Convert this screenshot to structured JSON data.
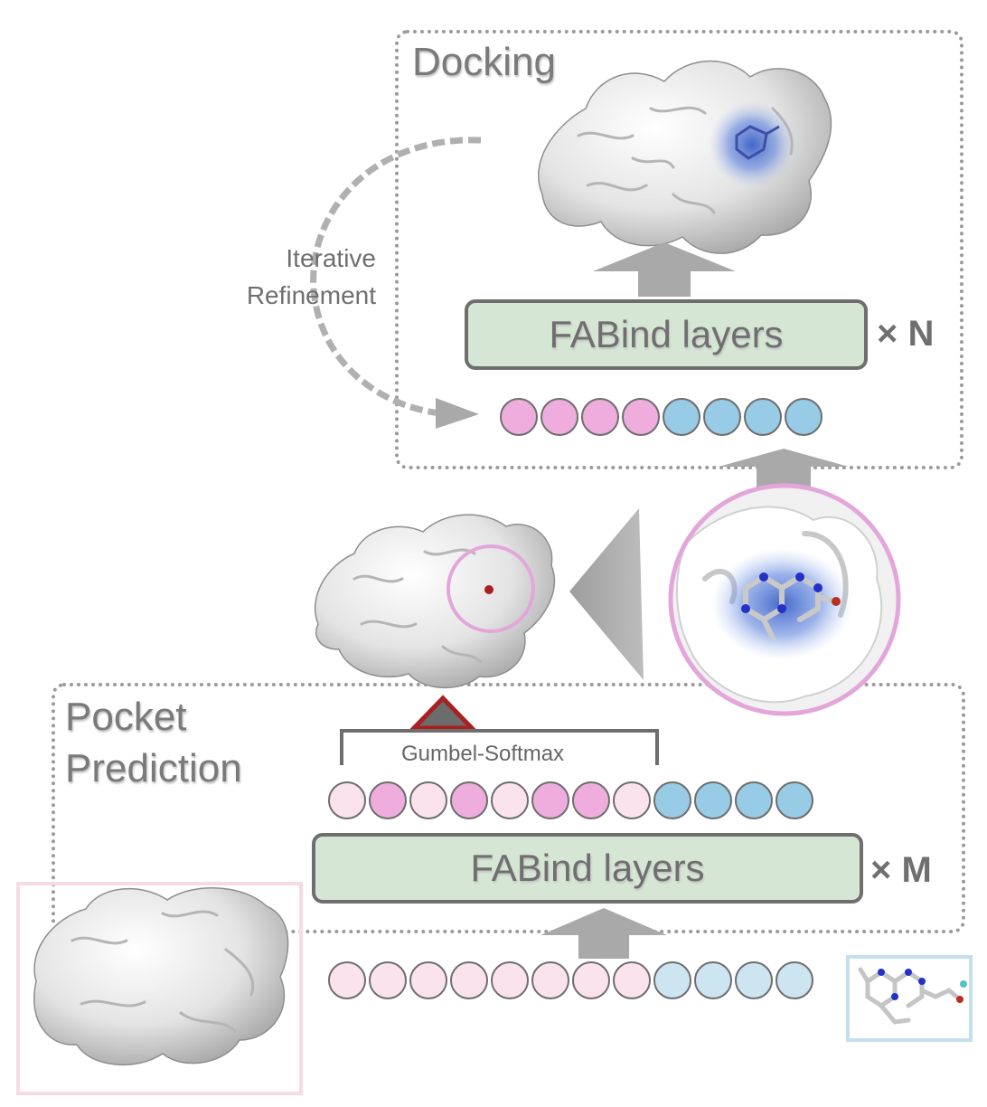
{
  "docking": {
    "title": "Docking",
    "layers_label": "FABind layers",
    "repeat_label": "× N",
    "tokens": [
      "pocket",
      "pocket",
      "pocket",
      "pocket",
      "ligand",
      "ligand",
      "ligand",
      "ligand"
    ]
  },
  "refinement": {
    "line1": "Iterative",
    "line2": "Refinement"
  },
  "pocket_prediction": {
    "title_line1": "Pocket",
    "title_line2": "Prediction",
    "layers_label": "FABind layers",
    "repeat_label": "× M",
    "gumbel_label": "Gumbel-Softmax",
    "output_tokens": [
      "protein",
      "pocket",
      "protein",
      "pocket",
      "protein",
      "pocket",
      "pocket",
      "protein",
      "ligand",
      "ligand",
      "ligand",
      "ligand"
    ],
    "input_tokens": [
      "protein",
      "protein",
      "protein",
      "protein",
      "protein",
      "protein",
      "protein",
      "protein",
      "ligand_light",
      "ligand_light",
      "ligand_light",
      "ligand_light"
    ]
  },
  "colors": {
    "pocket": "#eeaddc",
    "protein": "#fbe3ee",
    "ligand": "#97cbe6",
    "ligand_light": "#cde4f1",
    "layer_fill": "#d6e6d4",
    "dotted_border": "#9a9a9a",
    "arrow_gray": "#a9a9a9",
    "highlight_ring": "#e3a6da",
    "marker_red": "#a82020",
    "frame_pink": "#f7dbe3",
    "frame_blue": "#c4e0ef"
  },
  "icons": {
    "protein_docked": "protein-surface-docked-icon",
    "protein_pocket": "protein-surface-with-pocket-icon",
    "pocket_zoom": "pocket-zoom-ligand-icon",
    "protein_input": "protein-surface-input-icon",
    "ligand_input": "ligand-molecule-icon"
  }
}
